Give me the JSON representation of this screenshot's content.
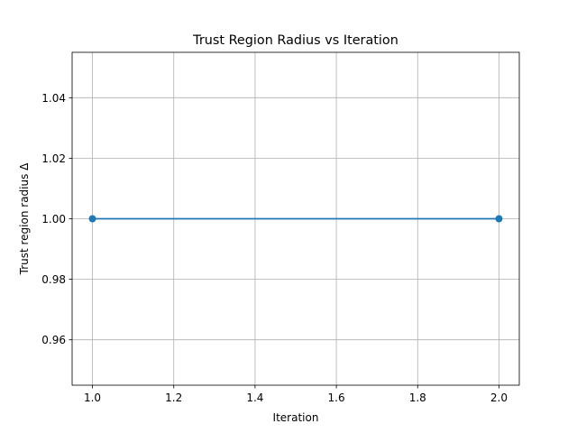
{
  "chart_data": {
    "type": "line",
    "title": "Trust Region Radius vs Iteration",
    "xlabel": "Iteration",
    "ylabel": "Trust region radius Δ",
    "xlim": [
      0.95,
      2.05
    ],
    "ylim": [
      0.945,
      1.055
    ],
    "xticks": [
      1.0,
      1.2,
      1.4,
      1.6,
      1.8,
      2.0
    ],
    "xtick_labels": [
      "1.0",
      "1.2",
      "1.4",
      "1.6",
      "1.8",
      "2.0"
    ],
    "yticks": [
      0.96,
      0.98,
      1.0,
      1.02,
      1.04
    ],
    "ytick_labels": [
      "0.96",
      "0.98",
      "1.00",
      "1.02",
      "1.04"
    ],
    "grid": true,
    "series": [
      {
        "x": [
          1,
          2
        ],
        "y": [
          1.0,
          1.0
        ],
        "color": "#1f77b4",
        "marker": "circle"
      }
    ]
  }
}
